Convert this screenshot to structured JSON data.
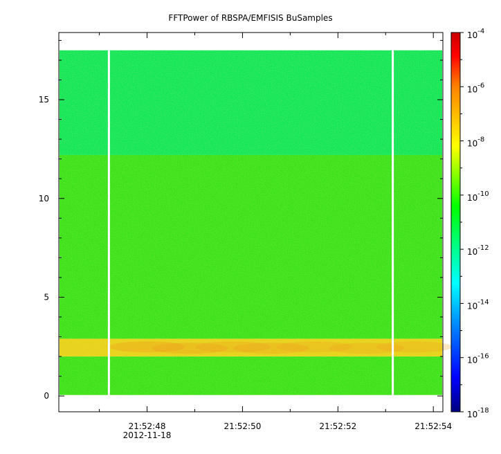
{
  "chart_data": {
    "type": "heatmap",
    "title": "FFTPower of RBSPA/EMFISIS  BuSamples",
    "xlabel": "",
    "ylabel": "",
    "x_ticks": [
      {
        "value": "21:52:48",
        "sublabel": "2012-11-18"
      },
      {
        "value": "21:52:50",
        "sublabel": ""
      },
      {
        "value": "21:52:52",
        "sublabel": ""
      },
      {
        "value": "21:52:54",
        "sublabel": ""
      }
    ],
    "xlim_seconds_of_minute": [
      46.15,
      54.2
    ],
    "y_ticks": [
      "0",
      "5",
      "10",
      "15"
    ],
    "ylim": [
      -0.8,
      18.4
    ],
    "colorbar": {
      "scale": "log",
      "range": [
        1e-18,
        0.0001
      ],
      "tick_labels": [
        {
          "base": "10",
          "exp": "-4"
        },
        {
          "base": "10",
          "exp": "-6"
        },
        {
          "base": "10",
          "exp": "-8"
        },
        {
          "base": "10",
          "exp": "-10"
        },
        {
          "base": "10",
          "exp": "-12"
        },
        {
          "base": "10",
          "exp": "-14"
        },
        {
          "base": "10",
          "exp": "-16"
        },
        {
          "base": "10",
          "exp": "-18"
        }
      ],
      "colormap": [
        "#00007f",
        "#0000ff",
        "#007fff",
        "#00ffff",
        "#00ff7f",
        "#00ff00",
        "#7fff00",
        "#ffff00",
        "#ffbf00",
        "#ff7f00",
        "#ff0000",
        "#cc0000"
      ]
    },
    "data_bands": [
      {
        "y_range": [
          0.05,
          2.0
        ],
        "power_log10": -10.2,
        "color": "#39e21a"
      },
      {
        "y_range": [
          2.0,
          2.9
        ],
        "power_log10": -8.3,
        "color": "#e7d21a"
      },
      {
        "y_range": [
          2.9,
          12.2
        ],
        "power_log10": -10.3,
        "color": "#39e21a"
      },
      {
        "y_range": [
          12.2,
          17.5
        ],
        "power_log10": -11.5,
        "color": "#11e65a"
      }
    ],
    "data_gaps_seconds": [
      47.2,
      53.15
    ],
    "grid": false,
    "legend": "colorbar-right"
  }
}
